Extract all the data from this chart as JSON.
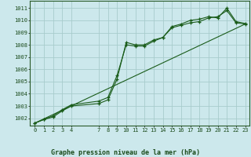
{
  "background_color": "#cce8ec",
  "grid_color": "#a8cccc",
  "line_color": "#1a5c1a",
  "marker_color": "#1a5c1a",
  "xlabel": "Graphe pression niveau de la mer (hPa)",
  "ylim": [
    1001.4,
    1011.6
  ],
  "xlim": [
    -0.5,
    23.5
  ],
  "yticks": [
    1002,
    1003,
    1004,
    1005,
    1006,
    1007,
    1008,
    1009,
    1010,
    1011
  ],
  "xticks": [
    0,
    1,
    2,
    3,
    4,
    7,
    8,
    9,
    10,
    11,
    12,
    13,
    14,
    15,
    16,
    17,
    18,
    19,
    20,
    21,
    22,
    23
  ],
  "series1_x": [
    0,
    1,
    2,
    3,
    4,
    7,
    8,
    9,
    10,
    11,
    12,
    13,
    14,
    15,
    16,
    17,
    18,
    19,
    20,
    21,
    22,
    23
  ],
  "series1_y": [
    1001.6,
    1001.9,
    1002.1,
    1002.6,
    1003.0,
    1003.2,
    1003.5,
    1005.2,
    1008.2,
    1008.0,
    1008.0,
    1008.4,
    1008.6,
    1009.4,
    1009.6,
    1009.8,
    1009.9,
    1010.2,
    1010.3,
    1010.8,
    1009.8,
    1009.7
  ],
  "series2_x": [
    0,
    1,
    2,
    3,
    4,
    7,
    8,
    9,
    10,
    11,
    12,
    13,
    14,
    15,
    16,
    17,
    18,
    19,
    20,
    21,
    22,
    23
  ],
  "series2_y": [
    1001.6,
    1001.9,
    1002.2,
    1002.7,
    1003.1,
    1003.4,
    1003.7,
    1005.5,
    1008.0,
    1007.9,
    1007.9,
    1008.3,
    1008.6,
    1009.5,
    1009.7,
    1010.0,
    1010.1,
    1010.3,
    1010.2,
    1011.0,
    1009.9,
    1009.75
  ],
  "series3_x": [
    0,
    23
  ],
  "series3_y": [
    1001.6,
    1009.7
  ]
}
